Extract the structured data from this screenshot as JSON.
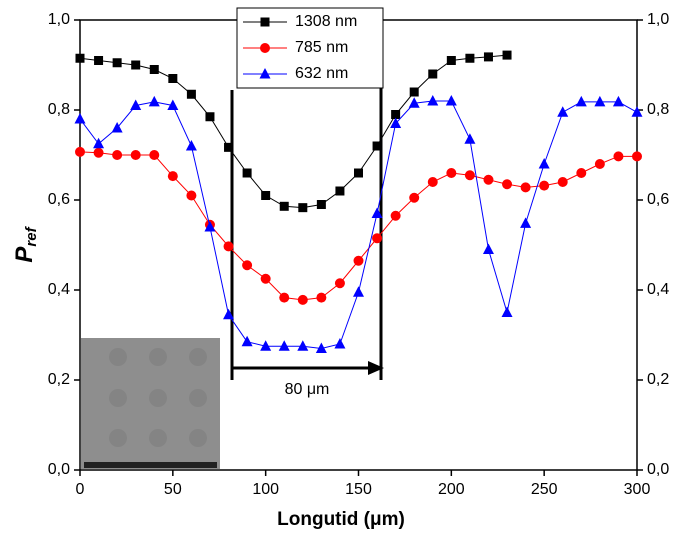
{
  "chart_data": {
    "type": "line",
    "ylabel": "P",
    "ylabel_sub": "ref",
    "xlabel": "Longutid (μm)",
    "annotation": "80 μm",
    "xlim": [
      0,
      300
    ],
    "xticks": [
      0,
      50,
      100,
      150,
      200,
      250,
      300
    ],
    "ylim": [
      0,
      1
    ],
    "yticks": [
      {
        "value": 0,
        "label": "0,0"
      },
      {
        "value": 0.2,
        "label": "0,2"
      },
      {
        "value": 0.4,
        "label": "0,4"
      },
      {
        "value": 0.6,
        "label": "0,6"
      },
      {
        "value": 0.8,
        "label": "0,8"
      },
      {
        "value": 1,
        "label": "1,0"
      }
    ],
    "y2lim": [
      0,
      1
    ],
    "y2ticks": [
      {
        "value": 0,
        "label": "0,0"
      },
      {
        "value": 0.2,
        "label": "0,2"
      },
      {
        "value": 0.4,
        "label": "0,4"
      },
      {
        "value": 0.6,
        "label": "0,6"
      },
      {
        "value": 0.8,
        "label": "0,8"
      },
      {
        "value": 1,
        "label": "1,0"
      }
    ],
    "legend": "upper center",
    "series": [
      {
        "name": "1308 nm",
        "color": "#000000",
        "marker": "square",
        "x": [
          0,
          10,
          20,
          30,
          40,
          50,
          60,
          70,
          80,
          90,
          100,
          110,
          120,
          130,
          140,
          150,
          160,
          170,
          180,
          190,
          200,
          210,
          220,
          230
        ],
        "values": [
          0.915,
          0.91,
          0.905,
          0.9,
          0.89,
          0.87,
          0.835,
          0.785,
          0.717,
          0.66,
          0.61,
          0.586,
          0.583,
          0.59,
          0.62,
          0.66,
          0.72,
          0.79,
          0.84,
          0.88,
          0.91,
          0.915,
          0.918,
          0.922
        ]
      },
      {
        "name": "785 nm",
        "color": "#ff0000",
        "marker": "circle",
        "x": [
          0,
          10,
          20,
          30,
          40,
          50,
          60,
          70,
          80,
          90,
          100,
          110,
          120,
          130,
          140,
          150,
          160,
          170,
          180,
          190,
          200,
          210,
          220,
          230,
          240,
          250,
          260,
          270,
          280,
          290,
          300
        ],
        "values": [
          0.707,
          0.705,
          0.7,
          0.7,
          0.7,
          0.653,
          0.61,
          0.545,
          0.497,
          0.455,
          0.425,
          0.383,
          0.378,
          0.383,
          0.415,
          0.465,
          0.515,
          0.565,
          0.605,
          0.64,
          0.66,
          0.655,
          0.645,
          0.635,
          0.628,
          0.632,
          0.64,
          0.66,
          0.68,
          0.697,
          0.697
        ]
      },
      {
        "name": "632 nm",
        "color": "#0000ff",
        "marker": "triangle",
        "x": [
          0,
          10,
          20,
          30,
          40,
          50,
          60,
          70,
          80,
          90,
          100,
          110,
          120,
          130,
          140,
          150,
          160,
          170,
          180,
          190,
          200,
          210,
          220,
          230,
          240,
          250,
          260,
          270,
          280,
          290,
          300
        ],
        "values": [
          0.78,
          0.725,
          0.76,
          0.81,
          0.818,
          0.81,
          0.72,
          0.54,
          0.345,
          0.285,
          0.275,
          0.275,
          0.275,
          0.27,
          0.28,
          0.395,
          0.57,
          0.77,
          0.815,
          0.82,
          0.82,
          0.735,
          0.49,
          0.35,
          0.548,
          0.68,
          0.795,
          0.818,
          0.818,
          0.818,
          0.795
        ]
      }
    ]
  }
}
